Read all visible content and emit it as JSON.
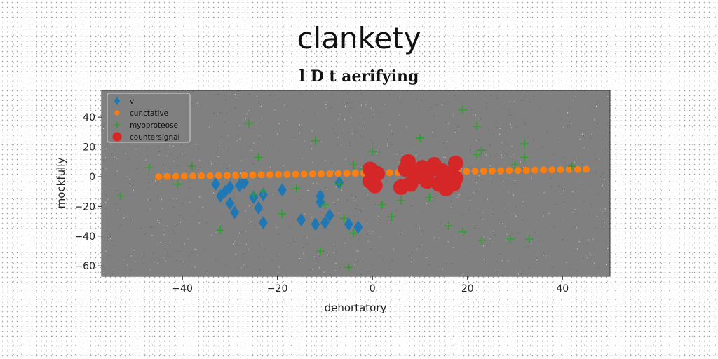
{
  "title": "clankety",
  "subtitle": "l D t aerifying",
  "chart_data": {
    "type": "scatter",
    "xlabel": "dehortatory",
    "ylabel": "mockfully",
    "xlim": [
      -57,
      50
    ],
    "ylim": [
      -67,
      58
    ],
    "xticks": [
      -40,
      -20,
      0,
      20,
      40
    ],
    "yticks": [
      40,
      20,
      0,
      -20,
      -40,
      -60
    ],
    "grid": false,
    "legend_position": "top-left",
    "plot_background": "#808080",
    "series": [
      {
        "name": "v",
        "marker": "diamond",
        "color": "#1f77b4",
        "points": [
          [
            -33,
            -5
          ],
          [
            -32,
            -13
          ],
          [
            -31,
            -10
          ],
          [
            -30,
            -18
          ],
          [
            -30,
            -7
          ],
          [
            -29,
            -24
          ],
          [
            -28,
            -6
          ],
          [
            -27,
            -4
          ],
          [
            -25,
            -14
          ],
          [
            -24,
            -21
          ],
          [
            -23,
            -12
          ],
          [
            -23,
            -31
          ],
          [
            -19,
            -9
          ],
          [
            -15,
            -29
          ],
          [
            -12,
            -32
          ],
          [
            -11,
            -13
          ],
          [
            -11,
            -17
          ],
          [
            -10,
            -31
          ],
          [
            -9,
            -26
          ],
          [
            -7,
            -4
          ],
          [
            -5,
            -32
          ],
          [
            -3,
            -34
          ]
        ]
      },
      {
        "name": "cunctative",
        "marker": "circle-small",
        "color": "#ff7f0e",
        "points": [
          [
            -45,
            0.0
          ],
          [
            -43.2,
            0.1
          ],
          [
            -41.4,
            0.2
          ],
          [
            -39.6,
            0.3
          ],
          [
            -37.8,
            0.4
          ],
          [
            -36,
            0.5
          ],
          [
            -34.2,
            0.6
          ],
          [
            -32.4,
            0.7
          ],
          [
            -30.6,
            0.8
          ],
          [
            -28.8,
            0.9
          ],
          [
            -27,
            1.0
          ],
          [
            -25.2,
            1.1
          ],
          [
            -23.4,
            1.2
          ],
          [
            -21.6,
            1.3
          ],
          [
            -19.8,
            1.4
          ],
          [
            -18,
            1.5
          ],
          [
            -16.2,
            1.6
          ],
          [
            -14.4,
            1.7
          ],
          [
            -12.6,
            1.8
          ],
          [
            -10.8,
            1.9
          ],
          [
            -9,
            2.0
          ],
          [
            -7.2,
            2.1
          ],
          [
            -5.4,
            2.2
          ],
          [
            -3.6,
            2.3
          ],
          [
            -1.8,
            2.4
          ],
          [
            0,
            2.5
          ],
          [
            1.8,
            2.6
          ],
          [
            3.6,
            2.7
          ],
          [
            5.4,
            2.8
          ],
          [
            7.2,
            2.9
          ],
          [
            9,
            3.0
          ],
          [
            10.8,
            3.1
          ],
          [
            12.6,
            3.2
          ],
          [
            14.4,
            3.3
          ],
          [
            16.2,
            3.4
          ],
          [
            18,
            3.5
          ],
          [
            19.8,
            3.6
          ],
          [
            21.6,
            3.7
          ],
          [
            23.4,
            3.8
          ],
          [
            25.2,
            3.9
          ],
          [
            27,
            4.0
          ],
          [
            28.8,
            4.1
          ],
          [
            30.6,
            4.2
          ],
          [
            32.4,
            4.3
          ],
          [
            34.2,
            4.4
          ],
          [
            36,
            4.5
          ],
          [
            37.8,
            4.6
          ],
          [
            39.6,
            4.7
          ],
          [
            41.4,
            4.8
          ],
          [
            43.2,
            4.9
          ],
          [
            45,
            5.0
          ]
        ]
      },
      {
        "name": "myoproteose",
        "marker": "plus",
        "color": "#2ca02c",
        "points": [
          [
            -53,
            -13
          ],
          [
            -47,
            6
          ],
          [
            -41,
            -5
          ],
          [
            -38,
            7
          ],
          [
            -32,
            -36
          ],
          [
            -26,
            36
          ],
          [
            -25,
            -12
          ],
          [
            -24,
            13
          ],
          [
            -23,
            -10
          ],
          [
            -19,
            -25
          ],
          [
            -16,
            -8
          ],
          [
            -12,
            24
          ],
          [
            -11,
            -50
          ],
          [
            -10,
            -19
          ],
          [
            -7,
            -5
          ],
          [
            -6,
            -28
          ],
          [
            -5,
            -61
          ],
          [
            -4,
            -38
          ],
          [
            -4,
            8
          ],
          [
            -2,
            5
          ],
          [
            0,
            17
          ],
          [
            2,
            -19
          ],
          [
            4,
            -27
          ],
          [
            6,
            -16
          ],
          [
            10,
            26
          ],
          [
            12,
            -14
          ],
          [
            16,
            -33
          ],
          [
            19,
            -37
          ],
          [
            19,
            45
          ],
          [
            22,
            15
          ],
          [
            22,
            34
          ],
          [
            23,
            18
          ],
          [
            23,
            -43
          ],
          [
            29,
            -42
          ],
          [
            30,
            8
          ],
          [
            32,
            13
          ],
          [
            32,
            22
          ],
          [
            33,
            -42
          ],
          [
            42,
            7
          ]
        ]
      },
      {
        "name": "countersignal",
        "marker": "circle-large",
        "color": "#d62728",
        "points": [
          [
            -0.5,
            5
          ],
          [
            -0.5,
            -3
          ],
          [
            0.5,
            -6
          ],
          [
            1,
            2
          ],
          [
            6,
            -7
          ],
          [
            7,
            5
          ],
          [
            7.5,
            10
          ],
          [
            8,
            -5
          ],
          [
            9,
            3
          ],
          [
            10,
            0
          ],
          [
            10.5,
            6
          ],
          [
            11.5,
            -3
          ],
          [
            12,
            4
          ],
          [
            13,
            8
          ],
          [
            14,
            -5
          ],
          [
            14.5,
            4
          ],
          [
            15,
            -1
          ],
          [
            15.5,
            -8
          ],
          [
            16,
            2
          ],
          [
            17,
            -5
          ],
          [
            17.5,
            -1
          ],
          [
            17.5,
            9
          ]
        ]
      }
    ]
  }
}
